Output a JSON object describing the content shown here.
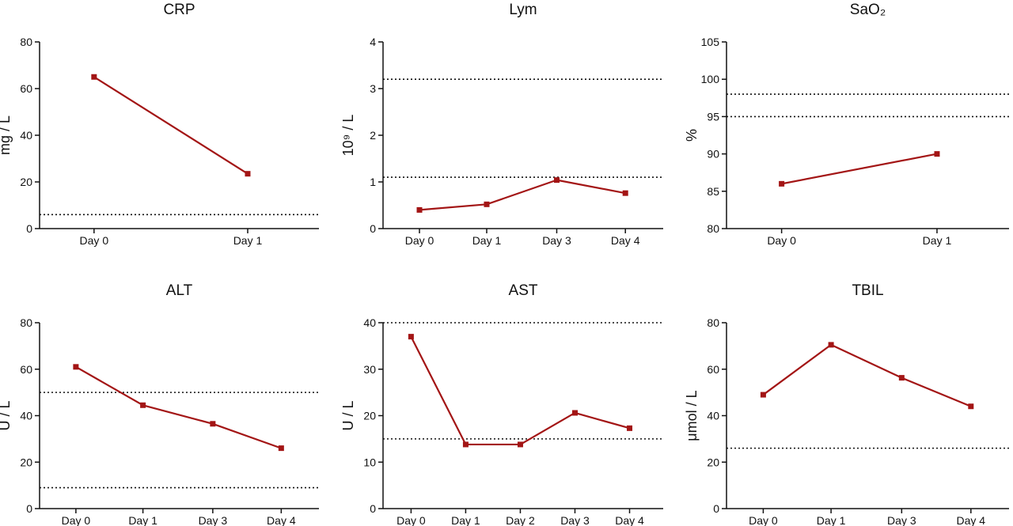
{
  "colors": {
    "series": "#a31515",
    "axis": "#111111",
    "background": "#ffffff"
  },
  "chart_data": [
    {
      "type": "line",
      "title": "CRP",
      "ylabel": "mg / L",
      "categories": [
        "Day 0",
        "Day 1"
      ],
      "series": [
        {
          "values": [
            65,
            23.5
          ]
        }
      ],
      "ylim": [
        0,
        80
      ],
      "yticks": [
        0,
        20,
        40,
        60,
        80
      ],
      "yticklabels": [
        "0",
        "20",
        "40",
        "60",
        "80"
      ],
      "reference_lines": [
        6
      ],
      "grid": false
    },
    {
      "type": "line",
      "title": "Lym",
      "ylabel": "10⁹ / L",
      "categories": [
        "Day 0",
        "Day 1",
        "Day 3",
        "Day 4"
      ],
      "series": [
        {
          "values": [
            0.4,
            0.52,
            1.04,
            0.76
          ]
        }
      ],
      "ylim": [
        0,
        4
      ],
      "yticks": [
        0,
        1,
        2,
        3,
        4
      ],
      "yticklabels": [
        "0",
        "1",
        "2",
        "3",
        "4"
      ],
      "reference_lines": [
        1.1,
        3.2
      ],
      "grid": false
    },
    {
      "type": "line",
      "title": "SaO₂",
      "ylabel": "%",
      "categories": [
        "Day 0",
        "Day 1"
      ],
      "series": [
        {
          "values": [
            86,
            90
          ]
        }
      ],
      "ylim": [
        80,
        105
      ],
      "yticks": [
        80,
        85,
        90,
        95,
        100,
        105
      ],
      "yticklabels": [
        "80",
        "85",
        "90",
        "95",
        "100",
        "105"
      ],
      "reference_lines": [
        95,
        98
      ],
      "grid": false
    },
    {
      "type": "line",
      "title": "ALT",
      "ylabel": "U / L",
      "categories": [
        "Day 0",
        "Day 1",
        "Day 3",
        "Day 4"
      ],
      "series": [
        {
          "values": [
            61,
            44.5,
            36.5,
            26
          ]
        }
      ],
      "ylim": [
        0,
        80
      ],
      "yticks": [
        0,
        20,
        40,
        60,
        80
      ],
      "yticklabels": [
        "0",
        "20",
        "40",
        "60",
        "80"
      ],
      "reference_lines": [
        9,
        50
      ],
      "grid": false
    },
    {
      "type": "line",
      "title": "AST",
      "ylabel": "U / L",
      "categories": [
        "Day 0",
        "Day 1",
        "Day 2",
        "Day 3",
        "Day 4"
      ],
      "series": [
        {
          "values": [
            37,
            13.8,
            13.8,
            20.6,
            17.3
          ]
        }
      ],
      "ylim": [
        0,
        40
      ],
      "yticks": [
        0,
        10,
        20,
        30,
        40
      ],
      "yticklabels": [
        "0",
        "10",
        "20",
        "30",
        "40"
      ],
      "reference_lines": [
        15,
        40
      ],
      "grid": false
    },
    {
      "type": "line",
      "title": "TBIL",
      "ylabel": "μmol / L",
      "categories": [
        "Day 0",
        "Day 1",
        "Day 3",
        "Day 4"
      ],
      "series": [
        {
          "values": [
            49,
            70.5,
            56.3,
            44
          ]
        }
      ],
      "ylim": [
        0,
        80
      ],
      "yticks": [
        0,
        20,
        40,
        60,
        80
      ],
      "yticklabels": [
        "0",
        "20",
        "40",
        "60",
        "80"
      ],
      "reference_lines": [
        26
      ],
      "grid": false
    }
  ]
}
